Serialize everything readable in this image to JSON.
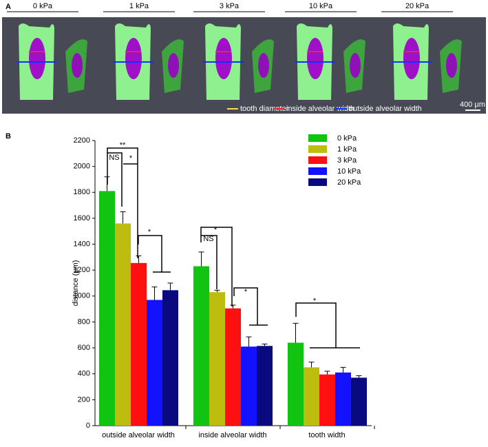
{
  "panel_a": {
    "label": "A",
    "conditions": [
      "0 kPa",
      "1 kPa",
      "3 kPa",
      "10 kPa",
      "20 kPa"
    ],
    "legend": [
      "tooth diameter",
      "inside alveolar width",
      "outside alveolar width"
    ],
    "scale_bar": "400 μm"
  },
  "panel_b_label": "B",
  "chart_data": {
    "type": "bar",
    "ylabel": "distance (μm)",
    "categories": [
      "outside alveolar width",
      "inside alveolar width",
      "tooth width"
    ],
    "series": [
      {
        "name": "0 kPa",
        "color": "#11c411",
        "values": [
          1810,
          1230,
          640
        ],
        "errors": [
          110,
          110,
          150
        ]
      },
      {
        "name": "1 kPa",
        "color": "#bdbd10",
        "values": [
          1560,
          1030,
          450
        ],
        "errors": [
          90,
          15,
          40
        ]
      },
      {
        "name": "3 kPa",
        "color": "#ff1010",
        "values": [
          1255,
          905,
          395
        ],
        "errors": [
          55,
          25,
          25
        ]
      },
      {
        "name": "10 kPa",
        "color": "#1212ff",
        "values": [
          970,
          610,
          410
        ],
        "errors": [
          100,
          75,
          40
        ]
      },
      {
        "name": "20 kPa",
        "color": "#0a0a80",
        "values": [
          1045,
          615,
          370
        ],
        "errors": [
          55,
          15,
          15
        ]
      }
    ],
    "ylim": [
      0,
      2200
    ],
    "yticks": [
      0,
      200,
      400,
      600,
      800,
      1000,
      1200,
      1400,
      1600,
      1800,
      2000,
      2200
    ],
    "annotations": [
      "NS",
      "**",
      "*",
      "*",
      "NS",
      "*",
      "*",
      "*"
    ]
  }
}
